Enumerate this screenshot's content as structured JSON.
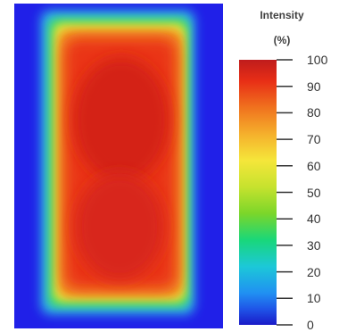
{
  "chart_data": {
    "type": "heatmap",
    "colorbar": {
      "title_line1": "Intensity",
      "title_line2": "(%)",
      "ticks": [
        100,
        90,
        80,
        70,
        60,
        50,
        40,
        30,
        20,
        10,
        0
      ],
      "range": [
        0,
        100
      ]
    },
    "field": {
      "description_levels": [
        {
          "level": 10
        },
        {
          "level": 45
        },
        {
          "level": 60
        },
        {
          "level": 80
        },
        {
          "level": 92
        },
        {
          "level": 97
        }
      ]
    },
    "colors": {
      "background": "#2020e8",
      "low": "#1a1ac8",
      "high": "#bf1c1c"
    }
  }
}
